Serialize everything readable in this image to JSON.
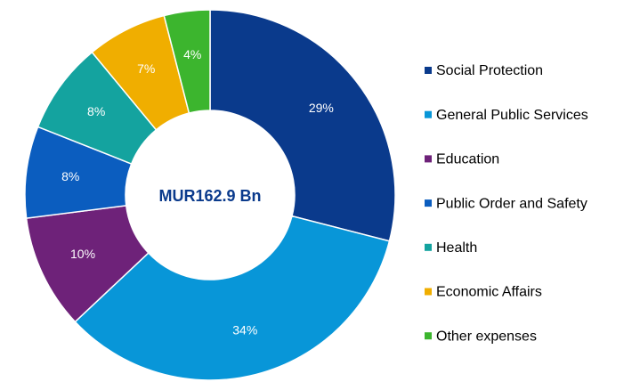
{
  "chart_data": {
    "type": "donut",
    "center_label": "MUR162.9 Bn",
    "categories": [
      "Social Protection",
      "General Public Services",
      "Education",
      "Public Order and Safety",
      "Health",
      "Economic Affairs",
      "Other expenses"
    ],
    "values": [
      29,
      34,
      10,
      8,
      8,
      7,
      4
    ],
    "value_labels": [
      "29%",
      "34%",
      "10%",
      "8%",
      "8%",
      "7%",
      "4%"
    ],
    "colors": [
      "#0a3a8c",
      "#0896d8",
      "#6e2279",
      "#0b5dbf",
      "#14a39f",
      "#f0ae00",
      "#3cb52e"
    ],
    "legend": "right"
  }
}
